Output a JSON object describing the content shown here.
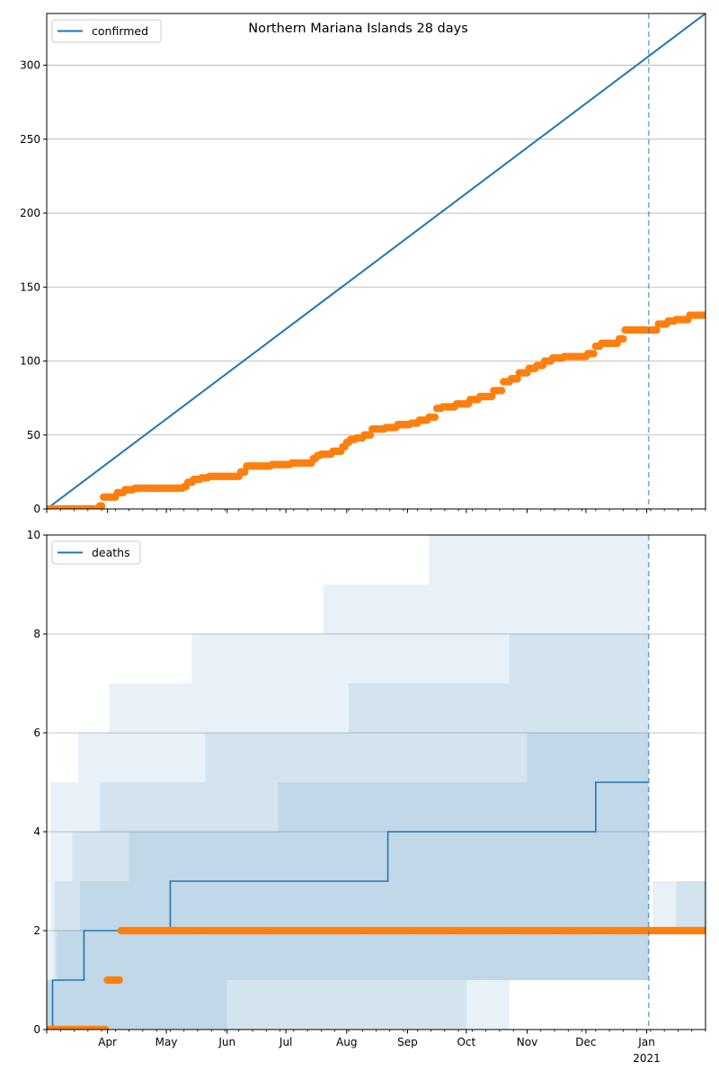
{
  "chart_data": [
    {
      "type": "line",
      "title": "Northern Mariana Islands 28 days",
      "legend": {
        "entries": [
          "confirmed"
        ],
        "placement": "upper-left"
      },
      "grid": "y",
      "xlim": [
        "2020-03-01",
        "2021-01-31"
      ],
      "ylim": [
        0,
        335
      ],
      "yticks": [
        0,
        50,
        100,
        150,
        200,
        250,
        300
      ],
      "colors": {
        "series": "#1f77b4",
        "observed": "#ff7f0e",
        "today_line": "#1f77b4",
        "grid": "#b0b0b0"
      },
      "today": "2021-01-02",
      "series": [
        {
          "name": "confirmed",
          "kind": "line",
          "x": [
            "2020-03-01",
            "2021-01-31"
          ],
          "y": [
            0,
            335
          ]
        },
        {
          "kind": "scatter-steps",
          "x": [
            "2020-03-01",
            "2020-03-28",
            "2020-03-30",
            "2020-04-06",
            "2020-04-10",
            "2020-04-15",
            "2020-04-17",
            "2020-05-10",
            "2020-05-12",
            "2020-05-15",
            "2020-05-19",
            "2020-05-23",
            "2020-06-05",
            "2020-06-08",
            "2020-06-11",
            "2020-06-24",
            "2020-07-04",
            "2020-07-15",
            "2020-07-17",
            "2020-07-19",
            "2020-07-25",
            "2020-07-30",
            "2020-08-01",
            "2020-08-03",
            "2020-08-06",
            "2020-08-10",
            "2020-08-14",
            "2020-08-21",
            "2020-08-27",
            "2020-09-03",
            "2020-09-07",
            "2020-09-12",
            "2020-09-16",
            "2020-09-19",
            "2020-09-26",
            "2020-10-03",
            "2020-10-08",
            "2020-10-15",
            "2020-10-20",
            "2020-10-24",
            "2020-10-28",
            "2020-11-02",
            "2020-11-06",
            "2020-11-10",
            "2020-11-14",
            "2020-11-20",
            "2020-12-02",
            "2020-12-06",
            "2020-12-09",
            "2020-12-14",
            "2020-12-18",
            "2020-12-21",
            "2021-01-07",
            "2021-01-12",
            "2021-01-16",
            "2021-01-23",
            "2021-01-31"
          ],
          "y": [
            0,
            2,
            8,
            11,
            13,
            14,
            14,
            15,
            18,
            20,
            21,
            22,
            22,
            25,
            29,
            30,
            31,
            34,
            36,
            37,
            39,
            42,
            45,
            47,
            48,
            50,
            54,
            55,
            57,
            58,
            60,
            62,
            68,
            69,
            71,
            74,
            76,
            80,
            86,
            88,
            92,
            95,
            97,
            100,
            102,
            103,
            105,
            110,
            112,
            112,
            115,
            121,
            125,
            127,
            128,
            131,
            131
          ]
        }
      ]
    },
    {
      "type": "line",
      "legend": {
        "entries": [
          "deaths"
        ],
        "placement": "upper-left"
      },
      "grid": "y",
      "xlim": [
        "2020-03-01",
        "2021-01-31"
      ],
      "ylim": [
        0,
        10
      ],
      "yticks": [
        0,
        2,
        4,
        6,
        8,
        10
      ],
      "xticks": [
        {
          "date": "2020-04-01",
          "label": "Apr"
        },
        {
          "date": "2020-05-01",
          "label": "May"
        },
        {
          "date": "2020-06-01",
          "label": "Jun"
        },
        {
          "date": "2020-07-01",
          "label": "Jul"
        },
        {
          "date": "2020-08-01",
          "label": "Aug"
        },
        {
          "date": "2020-09-01",
          "label": "Sep"
        },
        {
          "date": "2020-10-01",
          "label": "Oct"
        },
        {
          "date": "2020-11-01",
          "label": "Nov"
        },
        {
          "date": "2020-12-01",
          "label": "Dec"
        },
        {
          "date": "2021-01-01",
          "label": "Jan",
          "sublabel": "2021"
        }
      ],
      "colors": {
        "series": "#1f77b4",
        "observed": "#ff7f0e",
        "band": "#1f77b4",
        "today_line": "#1f77b4",
        "grid": "#b0b0b0"
      },
      "today": "2021-01-02",
      "bands": [
        {
          "opacity": 0.1,
          "x": [
            "2020-03-01",
            "2020-03-03",
            "2020-03-17",
            "2020-04-02",
            "2020-05-14",
            "2020-06-01",
            "2020-07-11",
            "2020-07-20",
            "2020-08-02",
            "2020-08-11",
            "2020-09-12",
            "2020-10-01",
            "2020-10-18",
            "2020-10-26",
            "2020-11-01",
            "2020-12-01",
            "2021-01-02"
          ],
          "upper": [
            2,
            5,
            6,
            7,
            8,
            8,
            8,
            9,
            9,
            9,
            10,
            10,
            10,
            10,
            10,
            10,
            10
          ],
          "lower": [
            0,
            0,
            0,
            0,
            0,
            0,
            0,
            0,
            0,
            0,
            0,
            1,
            1,
            1,
            1,
            1,
            1
          ]
        },
        {
          "opacity": 0.1,
          "x": [
            "2020-03-01",
            "2020-03-05",
            "2020-03-14",
            "2020-03-28",
            "2020-05-21",
            "2020-06-01",
            "2020-07-01",
            "2020-08-02",
            "2020-09-01",
            "2020-10-01",
            "2020-10-23",
            "2020-11-01",
            "2020-12-01",
            "2021-01-02"
          ],
          "upper": [
            1,
            3,
            4,
            5,
            6,
            6,
            6,
            7,
            7,
            7,
            8,
            8,
            8,
            8
          ],
          "lower": [
            0,
            0,
            0,
            0,
            0,
            0,
            0,
            0,
            0,
            0,
            1,
            1,
            1,
            1
          ]
        },
        {
          "opacity": 0.1,
          "x": [
            "2020-03-01",
            "2020-03-06",
            "2020-03-18",
            "2020-04-12",
            "2020-05-01",
            "2020-06-01",
            "2020-06-27",
            "2020-07-01",
            "2020-09-01",
            "2020-10-01",
            "2020-11-01",
            "2021-01-02"
          ],
          "upper": [
            1,
            2,
            3,
            4,
            4,
            4,
            5,
            5,
            5,
            5,
            6,
            6
          ],
          "lower": [
            0,
            0,
            0,
            0,
            0,
            1,
            1,
            1,
            1,
            1,
            1,
            1
          ]
        }
      ],
      "series": [
        {
          "name": "deaths",
          "kind": "step",
          "x": [
            "2020-03-01",
            "2020-03-04",
            "2020-03-20",
            "2020-05-03",
            "2020-08-22",
            "2020-12-06",
            "2021-01-02"
          ],
          "y": [
            0,
            1,
            2,
            3,
            4,
            5,
            5
          ]
        },
        {
          "kind": "scatter-steps",
          "x": [
            "2020-03-01",
            "2020-04-01",
            "2020-04-08",
            "2021-01-31"
          ],
          "y": [
            0,
            1,
            2,
            2
          ]
        }
      ],
      "forecast_bands": [
        {
          "opacity": 0.1,
          "x": [
            "2021-01-02",
            "2021-01-04",
            "2021-01-31"
          ],
          "upper": [
            2,
            3,
            3
          ],
          "lower": [
            2,
            2,
            2
          ]
        },
        {
          "opacity": 0.1,
          "x": [
            "2021-01-02",
            "2021-01-16",
            "2021-01-31"
          ],
          "upper": [
            2,
            3,
            3
          ],
          "lower": [
            2,
            2,
            2
          ]
        },
        {
          "opacity": 0.1,
          "x": [
            "2021-01-02",
            "2021-01-30",
            "2021-01-31"
          ],
          "upper": [
            2,
            3,
            4
          ],
          "lower": [
            2,
            2,
            2
          ]
        }
      ]
    }
  ]
}
